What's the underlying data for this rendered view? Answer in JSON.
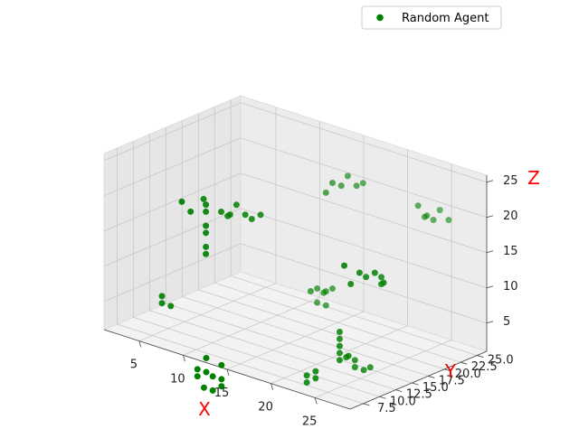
{
  "chart_data": {
    "type": "scatter",
    "projection": "3d",
    "xlabel": "X",
    "ylabel": "Y",
    "zlabel": "Z",
    "label_color": "#ff0000",
    "xlim": [
      1,
      29
    ],
    "ylim": [
      5.5,
      26.5
    ],
    "zlim": [
      1,
      26
    ],
    "xticks": [
      5,
      10,
      15,
      20,
      25
    ],
    "yticks": [
      7.5,
      10.0,
      12.5,
      15.0,
      17.5,
      20.0,
      22.5,
      25.0
    ],
    "zticks": [
      5,
      10,
      15,
      20,
      25
    ],
    "grid": true,
    "legend": {
      "position": "top-right",
      "entries": [
        "Random Agent"
      ]
    },
    "series": [
      {
        "name": "Random Agent",
        "color": "#008000",
        "marker": "circle",
        "points": [
          [
            10,
            9,
            21
          ],
          [
            10,
            9,
            20
          ],
          [
            10,
            9,
            18
          ],
          [
            10,
            9,
            17
          ],
          [
            10,
            9,
            15
          ],
          [
            10,
            9,
            14
          ],
          [
            9,
            8,
            20
          ],
          [
            11,
            10,
            20
          ],
          [
            12,
            10,
            20
          ],
          [
            13,
            11,
            20
          ],
          [
            8,
            8,
            21
          ],
          [
            9,
            10,
            21
          ],
          [
            11,
            11,
            19
          ],
          [
            13,
            12,
            19
          ],
          [
            12,
            11,
            21
          ],
          [
            14,
            12,
            20
          ],
          [
            17,
            19,
            23
          ],
          [
            18,
            19,
            23
          ],
          [
            19,
            20,
            23
          ],
          [
            18,
            20,
            24
          ],
          [
            19,
            21,
            23
          ],
          [
            17,
            18,
            22
          ],
          [
            26,
            20,
            23
          ],
          [
            27,
            20,
            22
          ],
          [
            26,
            21,
            21
          ],
          [
            27,
            21,
            21
          ],
          [
            28,
            22,
            21
          ],
          [
            27,
            22,
            22
          ],
          [
            25,
            10,
            18
          ],
          [
            26,
            11,
            17
          ],
          [
            27,
            12,
            17
          ],
          [
            28,
            12,
            16
          ],
          [
            26,
            12,
            16
          ],
          [
            27,
            13,
            16
          ],
          [
            25,
            11,
            15
          ],
          [
            27,
            13,
            15
          ],
          [
            5,
            9,
            6
          ],
          [
            5,
            9,
            5
          ],
          [
            6,
            9,
            5
          ],
          [
            16,
            17,
            8
          ],
          [
            16,
            18,
            8
          ],
          [
            17,
            18,
            8
          ],
          [
            17,
            19,
            8
          ],
          [
            16,
            19,
            7
          ],
          [
            16,
            18,
            6
          ],
          [
            17,
            18,
            6
          ],
          [
            23,
            12,
            7
          ],
          [
            23,
            12,
            6
          ],
          [
            23,
            12,
            5
          ],
          [
            23,
            12,
            4
          ],
          [
            24,
            12,
            4
          ],
          [
            23,
            12,
            3
          ],
          [
            24,
            13,
            3
          ],
          [
            24,
            13,
            2
          ],
          [
            25,
            13,
            2
          ],
          [
            25,
            14,
            2
          ],
          [
            23,
            13,
            3
          ],
          [
            20,
            11,
            0
          ],
          [
            20,
            11,
            -1
          ],
          [
            21,
            11,
            1
          ],
          [
            21,
            11,
            0
          ],
          [
            13,
            5,
            2
          ],
          [
            13,
            5,
            0
          ],
          [
            12,
            5,
            0
          ],
          [
            12,
            5,
            -1
          ],
          [
            14,
            6,
            1
          ],
          [
            14,
            6,
            -1
          ],
          [
            13,
            6,
            -1
          ],
          [
            14,
            6,
            -2
          ],
          [
            13,
            6,
            -3
          ],
          [
            12,
            6,
            -3
          ]
        ]
      }
    ]
  }
}
